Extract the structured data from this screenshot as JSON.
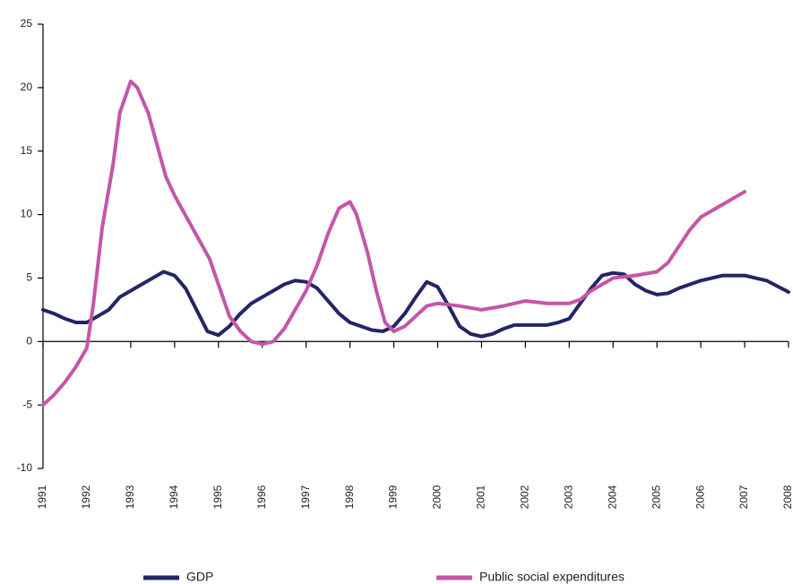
{
  "chart_data": {
    "type": "line",
    "xlim": [
      1991,
      2008
    ],
    "xticks": [
      1991,
      1992,
      1993,
      1994,
      1995,
      1996,
      1997,
      1998,
      1999,
      2000,
      2001,
      2002,
      2003,
      2004,
      2005,
      2006,
      2007,
      2008
    ],
    "ylim": [
      -10,
      25
    ],
    "yticks": [
      -10,
      -5,
      0,
      5,
      10,
      15,
      20,
      25
    ],
    "legend": "bottom",
    "series": [
      {
        "name": "GDP",
        "color": "#232566",
        "x": [
          1991,
          1991.25,
          1991.5,
          1991.75,
          1992,
          1992.25,
          1992.5,
          1992.75,
          1993,
          1993.25,
          1993.5,
          1993.75,
          1994,
          1994.25,
          1994.5,
          1994.75,
          1995,
          1995.25,
          1995.5,
          1995.75,
          1996,
          1996.25,
          1996.5,
          1996.75,
          1997,
          1997.25,
          1997.5,
          1997.75,
          1998,
          1998.25,
          1998.5,
          1998.75,
          1999,
          1999.25,
          1999.5,
          1999.75,
          2000,
          2000.25,
          2000.5,
          2000.75,
          2001,
          2001.25,
          2001.5,
          2001.75,
          2002,
          2002.5,
          2002.75,
          2003,
          2003.25,
          2003.5,
          2003.75,
          2004,
          2004.25,
          2004.5,
          2004.75,
          2005,
          2005.25,
          2005.5,
          2005.75,
          2006,
          2006.5,
          2007,
          2007.5,
          2008
        ],
        "values": [
          2.5,
          2.2,
          1.8,
          1.5,
          1.5,
          2,
          2.5,
          3.5,
          4,
          4.5,
          5,
          5.5,
          5.2,
          4.2,
          2.5,
          0.8,
          0.5,
          1.2,
          2.2,
          3,
          3.5,
          4,
          4.5,
          4.8,
          4.7,
          4.2,
          3.2,
          2.2,
          1.5,
          1.2,
          0.9,
          0.8,
          1.2,
          2.2,
          3.5,
          4.7,
          4.3,
          2.8,
          1.2,
          0.6,
          0.4,
          0.6,
          1,
          1.3,
          1.3,
          1.3,
          1.5,
          1.8,
          3,
          4.2,
          5.2,
          5.4,
          5.3,
          4.5,
          4,
          3.7,
          3.8,
          4.2,
          4.5,
          4.8,
          5.2,
          5.2,
          4.8,
          3.9
        ]
      },
      {
        "name": "Public social expenditures",
        "color": "#c456a9",
        "x": [
          1991,
          1991.25,
          1991.5,
          1991.75,
          1992,
          1992.15,
          1992.35,
          1992.6,
          1992.75,
          1993,
          1993.15,
          1993.4,
          1993.6,
          1993.8,
          1994,
          1994.4,
          1994.8,
          1995,
          1995.25,
          1995.5,
          1995.75,
          1996,
          1996.25,
          1996.5,
          1996.75,
          1997,
          1997.25,
          1997.5,
          1997.75,
          1998,
          1998.15,
          1998.4,
          1998.6,
          1998.8,
          1999,
          1999.25,
          1999.5,
          1999.75,
          2000,
          2000.5,
          2001,
          2001.5,
          2002,
          2002.5,
          2003,
          2003.25,
          2003.5,
          2004,
          2004.5,
          2005,
          2005.25,
          2005.5,
          2005.75,
          2006,
          2006.5,
          2007
        ],
        "values": [
          -5,
          -4.2,
          -3.2,
          -2,
          -0.5,
          3,
          9,
          14,
          18,
          20.5,
          20,
          18,
          15.5,
          13,
          11.5,
          9,
          6.5,
          4.5,
          2,
          0.8,
          0,
          -0.2,
          0,
          1,
          2.5,
          4,
          6,
          8.5,
          10.5,
          11,
          10,
          7,
          4,
          1.5,
          0.8,
          1.2,
          2,
          2.8,
          3,
          2.8,
          2.5,
          2.8,
          3.2,
          3,
          3,
          3.3,
          4,
          5,
          5.2,
          5.5,
          6.2,
          7.5,
          8.8,
          9.8,
          10.8,
          11.8
        ]
      }
    ]
  }
}
